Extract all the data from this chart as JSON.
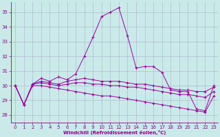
{
  "bg_color": "#caeaea",
  "line_color": "#990099",
  "grid_color": "#b0b8d0",
  "xlabel": "Windchill (Refroidissement éolien,°C)",
  "xlabel_color": "#880088",
  "tick_color": "#880088",
  "ylim": [
    27.5,
    35.7
  ],
  "xlim": [
    -0.5,
    23.5
  ],
  "yticks": [
    28,
    29,
    30,
    31,
    32,
    33,
    34,
    35
  ],
  "xticks": [
    0,
    1,
    2,
    3,
    4,
    5,
    6,
    7,
    8,
    9,
    10,
    11,
    12,
    13,
    14,
    15,
    16,
    17,
    18,
    19,
    20,
    21,
    22,
    23
  ],
  "series": [
    {
      "x": [
        0,
        1,
        2,
        3,
        4,
        5,
        6,
        7,
        8,
        9,
        10,
        11,
        12,
        13,
        14,
        15,
        16,
        17,
        18,
        19,
        20,
        21,
        22,
        23
      ],
      "y": [
        30.0,
        28.7,
        30.1,
        30.5,
        30.3,
        30.6,
        30.4,
        30.8,
        32.0,
        33.3,
        34.7,
        35.0,
        35.3,
        33.4,
        31.2,
        31.3,
        31.3,
        30.9,
        29.7,
        29.6,
        29.6,
        28.4,
        28.3,
        30.0
      ]
    },
    {
      "x": [
        0,
        1,
        2,
        3,
        4,
        5,
        6,
        7,
        8,
        9,
        10,
        11,
        12,
        13,
        14,
        15,
        16,
        17,
        18,
        19,
        20,
        21,
        22,
        23
      ],
      "y": [
        30.0,
        28.7,
        30.1,
        30.3,
        30.2,
        30.1,
        30.3,
        30.4,
        30.5,
        30.4,
        30.3,
        30.3,
        30.3,
        30.2,
        30.1,
        30.1,
        30.0,
        29.9,
        29.8,
        29.7,
        29.7,
        29.6,
        29.6,
        29.9
      ]
    },
    {
      "x": [
        0,
        1,
        2,
        3,
        4,
        5,
        6,
        7,
        8,
        9,
        10,
        11,
        12,
        13,
        14,
        15,
        16,
        17,
        18,
        19,
        20,
        21,
        22,
        23
      ],
      "y": [
        30.0,
        28.7,
        30.1,
        30.2,
        30.1,
        30.0,
        30.1,
        30.2,
        30.2,
        30.1,
        30.1,
        30.0,
        30.0,
        29.9,
        29.9,
        29.8,
        29.7,
        29.6,
        29.5,
        29.4,
        29.4,
        29.3,
        29.2,
        29.6
      ]
    },
    {
      "x": [
        0,
        1,
        2,
        3,
        4,
        5,
        6,
        7,
        8,
        9,
        10,
        11,
        12,
        13,
        14,
        15,
        16,
        17,
        18,
        19,
        20,
        21,
        22,
        23
      ],
      "y": [
        30.0,
        28.7,
        30.0,
        30.0,
        29.9,
        29.8,
        29.7,
        29.6,
        29.5,
        29.4,
        29.3,
        29.3,
        29.2,
        29.1,
        29.0,
        28.9,
        28.8,
        28.7,
        28.6,
        28.5,
        28.4,
        28.3,
        28.2,
        29.3
      ]
    }
  ]
}
